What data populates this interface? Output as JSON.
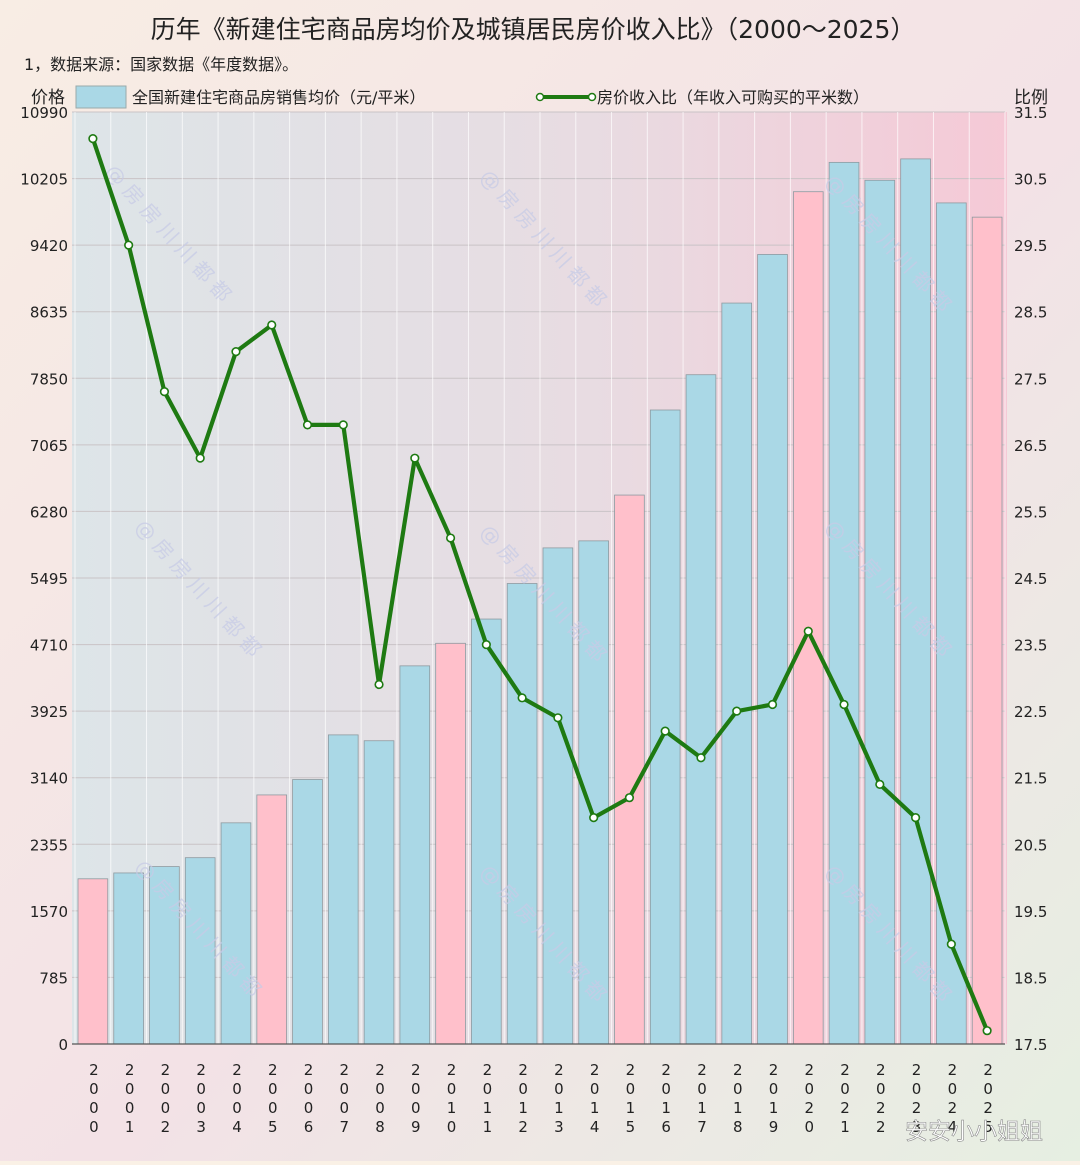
{
  "header": {
    "title": "历年《新建住宅商品房均价及城镇居民房价收入比》（2000～2025）",
    "source_note": "1，数据来源：国家数据《年度数据》。"
  },
  "watermark": {
    "chart_text": "@房房川川都都",
    "corner_text": "安安小小姐姐"
  },
  "colors": {
    "bar_normal": "#aad8e6",
    "bar_highlight": "#ffc0cb",
    "line": "#1e7a12",
    "marker_fill": "#ffffff",
    "plot_bg_left": "#dfe3e6",
    "plot_bg_right": "#f6cad8",
    "page_bg": "#faf1e6"
  },
  "chart_data": {
    "type": "bar",
    "title": "历年《新建住宅商品房均价及城镇居民房价收入比》（2000～2025）",
    "ylabel_left": "价格",
    "ylabel_right": "比例",
    "ylim": [
      0,
      10990
    ],
    "y2lim": [
      17.5,
      31.5
    ],
    "yticks": [
      "0",
      "785",
      "1570",
      "2355",
      "3140",
      "3925",
      "4710",
      "5495",
      "6280",
      "7065",
      "7850",
      "8635",
      "9420",
      "10205",
      "10990"
    ],
    "y2ticks": [
      "17.5",
      "18.5",
      "19.5",
      "20.5",
      "21.5",
      "22.5",
      "23.5",
      "24.5",
      "25.5",
      "26.5",
      "27.5",
      "28.5",
      "29.5",
      "30.5",
      "31.5"
    ],
    "categories": [
      "2000",
      "2001",
      "2002",
      "2003",
      "2004",
      "2005",
      "2006",
      "2007",
      "2008",
      "2009",
      "2010",
      "2011",
      "2012",
      "2013",
      "2014",
      "2015",
      "2016",
      "2017",
      "2018",
      "2019",
      "2020",
      "2021",
      "2022",
      "2023",
      "2024",
      "2025"
    ],
    "highlight_categories": [
      "2000",
      "2005",
      "2010",
      "2015",
      "2020",
      "2025"
    ],
    "grid": true,
    "legend_position": "top",
    "series": [
      {
        "name": "全国新建住宅商品房销售均价（元/平米）",
        "type": "bar",
        "axis": "left",
        "values": [
          1948,
          2017,
          2092,
          2197,
          2608,
          2937,
          3119,
          3645,
          3576,
          4459,
          4725,
          5011,
          5430,
          5850,
          5933,
          6473,
          7476,
          7892,
          8737,
          9310,
          10050,
          10396,
          10185,
          10437,
          9918,
          9750
        ]
      },
      {
        "name": "房价收入比（年收入可购买的平米数）",
        "type": "line",
        "axis": "right",
        "values": [
          31.1,
          29.5,
          27.3,
          26.3,
          27.9,
          28.3,
          26.8,
          26.8,
          22.9,
          26.3,
          25.1,
          23.5,
          22.7,
          22.4,
          20.9,
          21.2,
          22.2,
          21.8,
          22.5,
          22.6,
          23.7,
          22.6,
          21.4,
          20.9,
          19.0,
          17.7
        ]
      }
    ]
  }
}
